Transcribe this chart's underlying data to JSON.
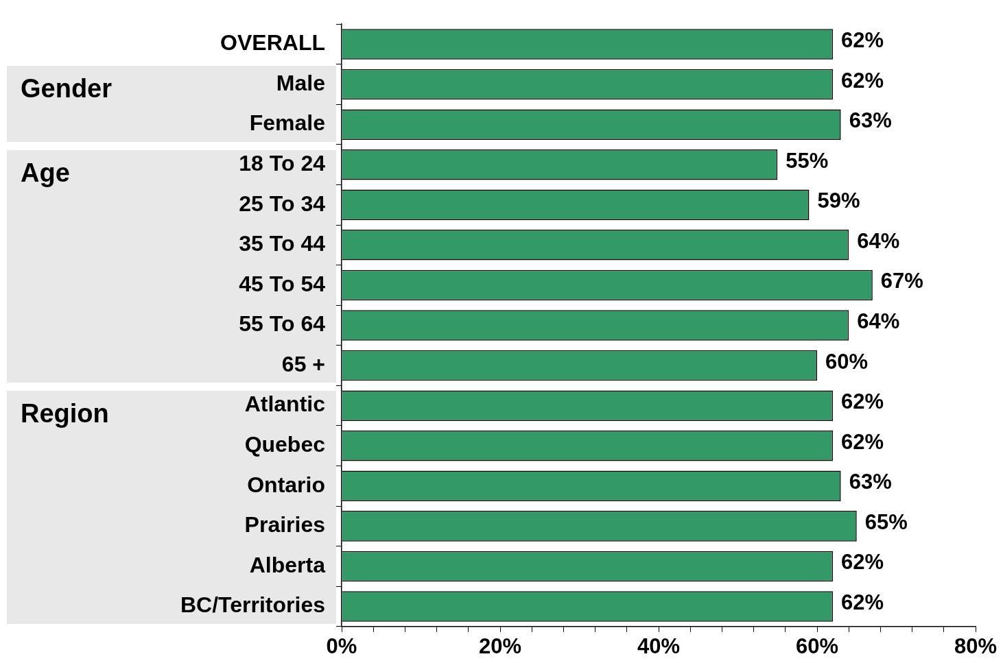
{
  "chart_data": {
    "type": "bar",
    "orientation": "horizontal",
    "categories": [
      "OVERALL",
      "Male",
      "Female",
      "18 To 24",
      "25 To 34",
      "35 To 44",
      "45 To 54",
      "55 To 64",
      "65 +",
      "Atlantic",
      "Quebec",
      "Ontario",
      "Prairies",
      "Alberta",
      "BC/Territories"
    ],
    "values": [
      62,
      62,
      63,
      55,
      59,
      64,
      67,
      64,
      60,
      62,
      62,
      63,
      65,
      62,
      62
    ],
    "value_labels": [
      "62%",
      "62%",
      "63%",
      "55%",
      "59%",
      "64%",
      "67%",
      "64%",
      "60%",
      "62%",
      "62%",
      "63%",
      "65%",
      "62%",
      "62%"
    ],
    "color": "#339966",
    "xlim": [
      0,
      80
    ],
    "xticks": [
      {
        "value": 0,
        "label": "0%"
      },
      {
        "value": 4,
        "label": null
      },
      {
        "value": 8,
        "label": null
      },
      {
        "value": 12,
        "label": null
      },
      {
        "value": 16,
        "label": null
      },
      {
        "value": 20,
        "label": "20%"
      },
      {
        "value": 24,
        "label": null
      },
      {
        "value": 28,
        "label": null
      },
      {
        "value": 32,
        "label": null
      },
      {
        "value": 36,
        "label": null
      },
      {
        "value": 40,
        "label": "40%"
      },
      {
        "value": 44,
        "label": null
      },
      {
        "value": 48,
        "label": null
      },
      {
        "value": 52,
        "label": null
      },
      {
        "value": 56,
        "label": null
      },
      {
        "value": 60,
        "label": "60%"
      },
      {
        "value": 64,
        "label": null
      },
      {
        "value": 68,
        "label": null
      },
      {
        "value": 72,
        "label": null
      },
      {
        "value": 76,
        "label": null
      },
      {
        "value": 80,
        "label": "80%"
      }
    ],
    "annotations": [
      "Gender",
      "Age",
      "Region"
    ],
    "grid": false,
    "legend": false
  }
}
